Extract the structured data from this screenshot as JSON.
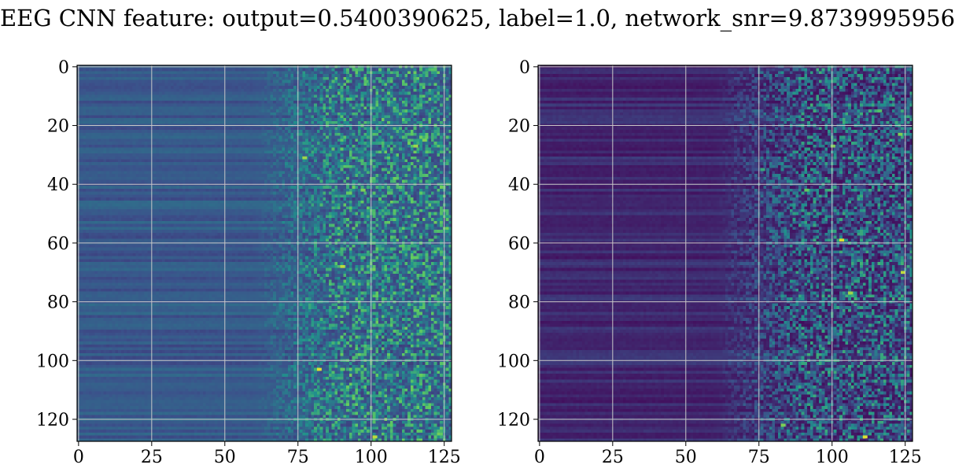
{
  "title": "EEG CNN feature: output=0.5400390625, label=1.0, network_snr=9.8739995956",
  "colormap": {
    "name": "viridis",
    "stops": [
      "#440154",
      "#3b528b",
      "#21918c",
      "#5ec962",
      "#fde725"
    ],
    "grid_color": "#c8c8c8"
  },
  "chart_data": [
    {
      "type": "heatmap",
      "rows": 128,
      "cols": 128,
      "xlim": [
        0,
        127
      ],
      "ylim": [
        127,
        0
      ],
      "xticks": [
        0,
        25,
        50,
        75,
        100,
        125
      ],
      "yticks": [
        0,
        20,
        40,
        60,
        80,
        100,
        120
      ],
      "xlabel": "",
      "ylabel": "",
      "grid": true,
      "value_range": [
        0,
        1
      ],
      "description_profile": {
        "left_region_cols": [
          0,
          60
        ],
        "left_region_level": 0.28,
        "noisy_region_cols": [
          70,
          127
        ],
        "noisy_region_level": 0.35
      },
      "hotspots": [
        {
          "row": 103,
          "col": 82,
          "value": 0.95
        },
        {
          "row": 103,
          "col": 90,
          "value": 0.75
        },
        {
          "row": 103,
          "col": 95,
          "value": 0.7
        },
        {
          "row": 68,
          "col": 90,
          "value": 0.9
        },
        {
          "row": 65,
          "col": 97,
          "value": 0.7
        },
        {
          "row": 65,
          "col": 115,
          "value": 0.75
        },
        {
          "row": 27,
          "col": 115,
          "value": 0.85
        },
        {
          "row": 25,
          "col": 118,
          "value": 0.8
        },
        {
          "row": 31,
          "col": 77,
          "value": 0.85
        },
        {
          "row": 126,
          "col": 101,
          "value": 0.9
        },
        {
          "row": 42,
          "col": 97,
          "value": 0.8
        },
        {
          "row": 5,
          "col": 98,
          "value": 0.7
        }
      ]
    },
    {
      "type": "heatmap",
      "rows": 128,
      "cols": 128,
      "xlim": [
        0,
        127
      ],
      "ylim": [
        127,
        0
      ],
      "xticks": [
        0,
        25,
        50,
        75,
        100,
        125
      ],
      "yticks": [
        0,
        20,
        40,
        60,
        80,
        100,
        120
      ],
      "xlabel": "",
      "ylabel": "",
      "grid": true,
      "value_range": [
        0,
        1
      ],
      "description_profile": {
        "left_region_cols": [
          0,
          60
        ],
        "left_region_level": 0.12,
        "noisy_region_cols": [
          70,
          127
        ],
        "noisy_region_level": 0.2
      },
      "hotspots": [
        {
          "row": 59,
          "col": 103,
          "value": 0.95
        },
        {
          "row": 70,
          "col": 124,
          "value": 0.9
        },
        {
          "row": 126,
          "col": 111,
          "value": 0.95
        },
        {
          "row": 77,
          "col": 106,
          "value": 0.85
        },
        {
          "row": 27,
          "col": 100,
          "value": 0.8
        },
        {
          "row": 42,
          "col": 91,
          "value": 0.75
        },
        {
          "row": 23,
          "col": 123,
          "value": 0.8
        },
        {
          "row": 122,
          "col": 83,
          "value": 0.8
        },
        {
          "row": 15,
          "col": 116,
          "value": 0.7
        },
        {
          "row": 35,
          "col": 76,
          "value": 0.6
        }
      ]
    }
  ]
}
